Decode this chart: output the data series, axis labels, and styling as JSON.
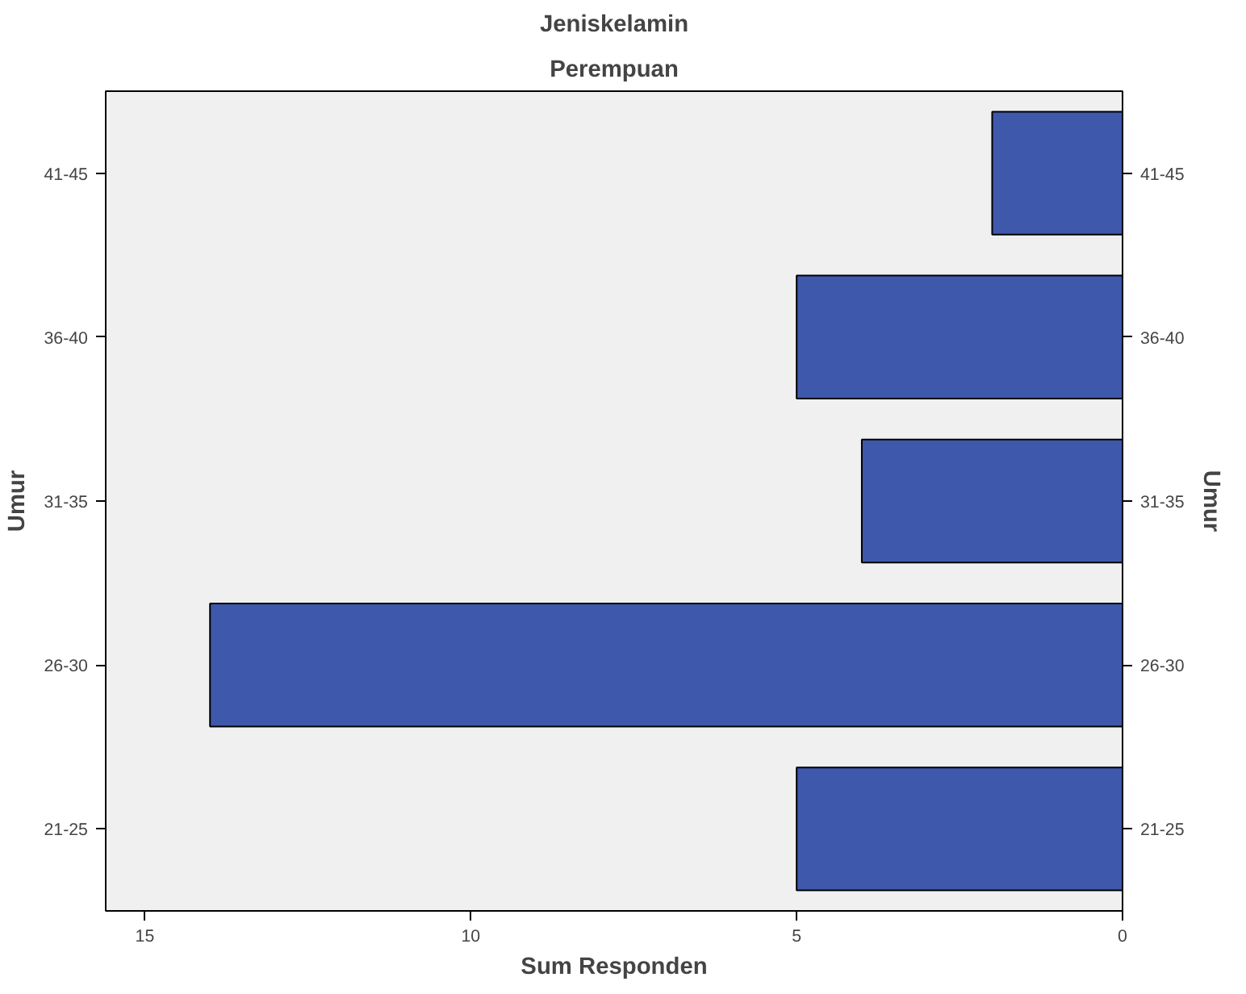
{
  "chart_data": {
    "type": "bar",
    "orientation": "horizontal",
    "title": "Jeniskelamin",
    "subtitle": "Perempuan",
    "xlabel": "Sum Responden",
    "ylabel": "Umur",
    "y2label": "Umur",
    "categories": [
      "41-45",
      "36-40",
      "31-35",
      "26-30",
      "21-25"
    ],
    "values": [
      2,
      5,
      4,
      14,
      5
    ],
    "color": "#3e58ac",
    "xlim": [
      15.6,
      0
    ],
    "xticks": [
      15,
      10,
      5,
      0
    ],
    "grid": false
  }
}
